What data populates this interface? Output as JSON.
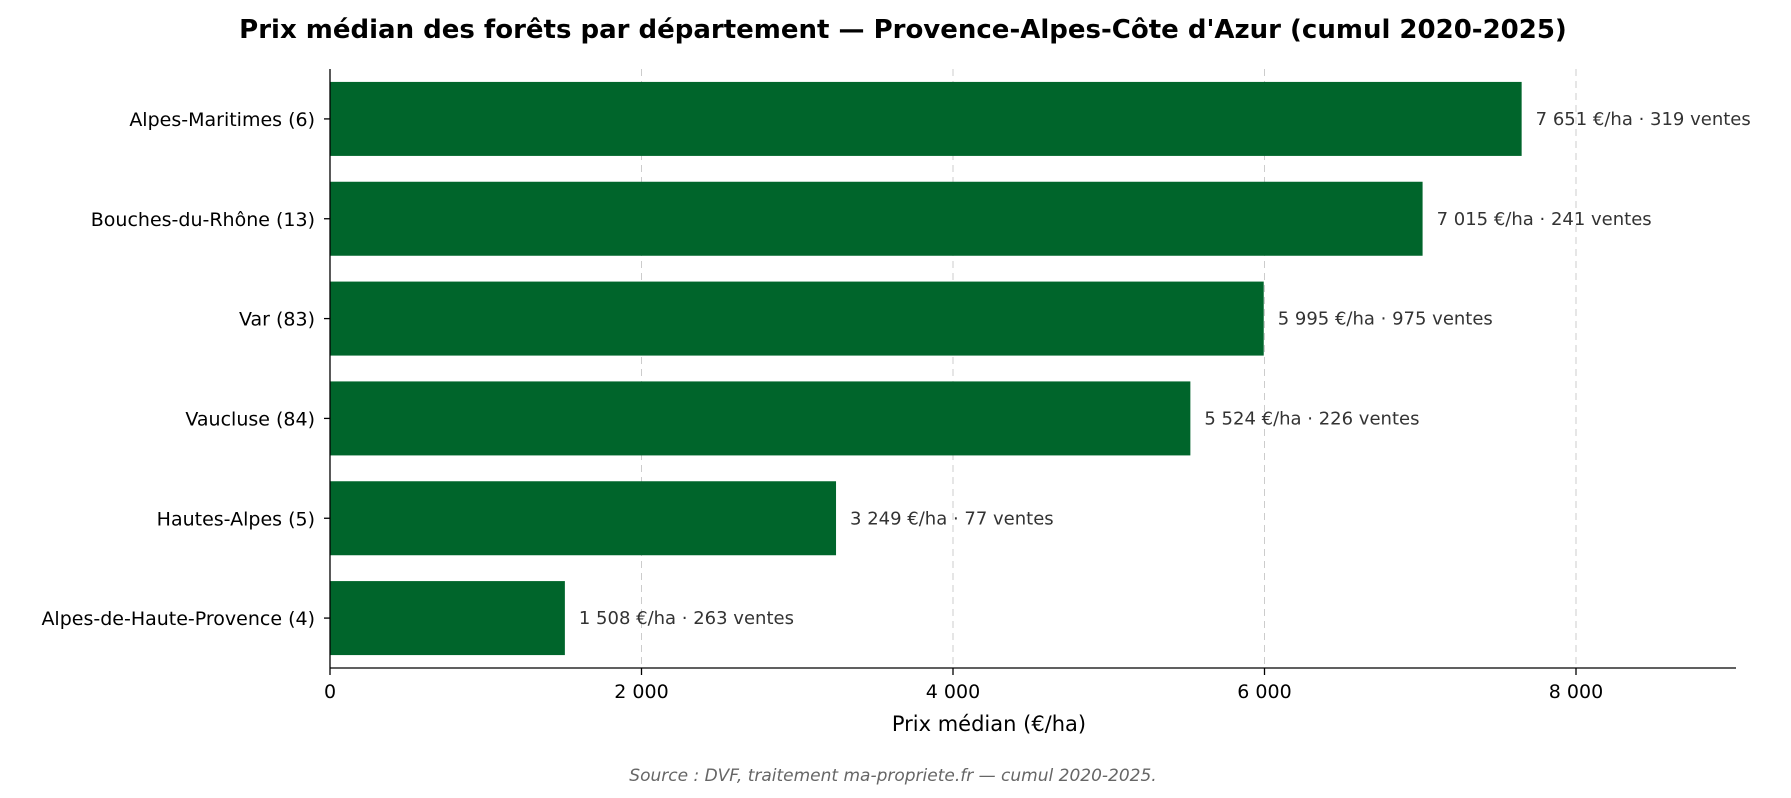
{
  "chart_data": {
    "type": "bar",
    "orientation": "horizontal",
    "title": "Prix médian des forêts par département — Provence-Alpes-Côte d'Azur (cumul 2020-2025)",
    "xlabel": "Prix médian (€/ha)",
    "ylabel": "",
    "xlim": [
      0,
      9000
    ],
    "xticks": [
      0,
      2000,
      4000,
      6000,
      8000
    ],
    "xtick_labels": [
      "0",
      "2 000",
      "4 000",
      "6 000",
      "8 000"
    ],
    "grid": "x-dashed",
    "bar_color": "#00652b",
    "categories": [
      "Alpes-Maritimes (6)",
      "Bouches-du-Rhône (13)",
      "Var (83)",
      "Vaucluse (84)",
      "Hautes-Alpes (5)",
      "Alpes-de-Haute-Provence (4)"
    ],
    "values": [
      7651,
      7015,
      5995,
      5524,
      3249,
      1508
    ],
    "sales": [
      319,
      241,
      975,
      226,
      77,
      263
    ],
    "data_labels": [
      "7 651 €/ha · 319 ventes",
      "7 015 €/ha · 241 ventes",
      "5 995 €/ha · 975 ventes",
      "5 524 €/ha · 226 ventes",
      "3 249 €/ha · 77 ventes",
      "1 508 €/ha · 263 ventes"
    ],
    "source": "Source : DVF, traitement ma-propriete.fr — cumul 2020-2025."
  }
}
